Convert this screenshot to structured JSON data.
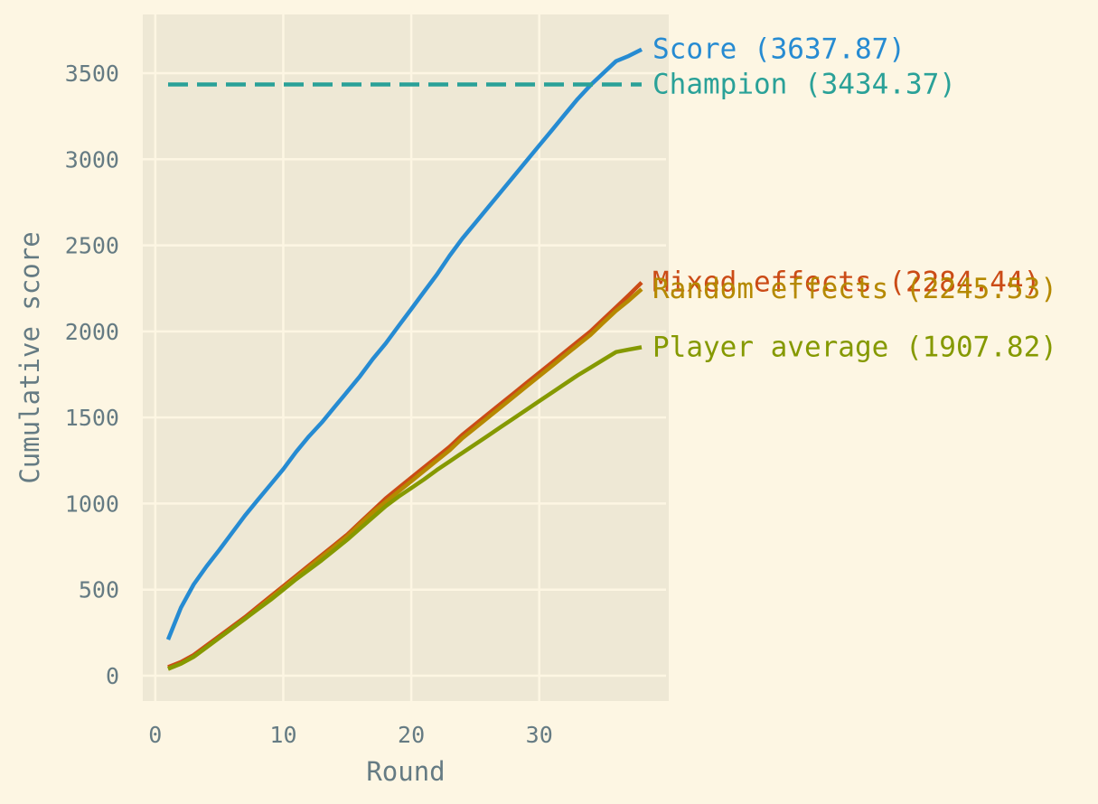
{
  "chart_data": {
    "type": "line",
    "title": "",
    "xlabel": "Round",
    "ylabel": "Cumulative score",
    "xlim": [
      0,
      40
    ],
    "ylim": [
      -150,
      3830
    ],
    "xticks": [
      0,
      10,
      20,
      30
    ],
    "yticks": [
      0,
      500,
      1000,
      1500,
      2000,
      2500,
      3000,
      3500
    ],
    "grid": true,
    "legend": "end-of-line labels",
    "colors": {
      "background": "#fdf6e3",
      "panel": "#eee8d5",
      "grid": "#fdf6e3",
      "text": "#657b83"
    },
    "series": [
      {
        "key": "score",
        "label": "Score (3637.87)",
        "color": "#268bd2",
        "dashed": false,
        "x": [
          1,
          2,
          3,
          4,
          5,
          6,
          7,
          8,
          9,
          10,
          11,
          12,
          13,
          14,
          15,
          16,
          17,
          18,
          19,
          20,
          21,
          22,
          23,
          24,
          25,
          26,
          27,
          28,
          29,
          30,
          31,
          32,
          33,
          34,
          35,
          36,
          37,
          38
        ],
        "y": [
          210,
          395,
          530,
          635,
          730,
          830,
          930,
          1020,
          1110,
          1200,
          1300,
          1390,
          1470,
          1560,
          1650,
          1740,
          1840,
          1930,
          2030,
          2130,
          2230,
          2330,
          2440,
          2540,
          2630,
          2720,
          2810,
          2900,
          2990,
          3080,
          3170,
          3260,
          3350,
          3430,
          3500,
          3570,
          3600,
          3637.87
        ]
      },
      {
        "key": "mixed",
        "label": "Mixed effects (2284.44)",
        "color": "#cb4b16",
        "dashed": false,
        "x": [
          1,
          2,
          3,
          4,
          5,
          6,
          7,
          8,
          9,
          10,
          11,
          12,
          13,
          14,
          15,
          16,
          17,
          18,
          19,
          20,
          21,
          22,
          23,
          24,
          25,
          26,
          27,
          28,
          29,
          30,
          31,
          32,
          33,
          34,
          35,
          36,
          37,
          38
        ],
        "y": [
          50,
          80,
          120,
          175,
          230,
          285,
          340,
          400,
          460,
          520,
          580,
          640,
          700,
          760,
          820,
          890,
          960,
          1030,
          1090,
          1150,
          1210,
          1270,
          1330,
          1400,
          1460,
          1520,
          1580,
          1640,
          1700,
          1760,
          1820,
          1880,
          1940,
          2000,
          2070,
          2140,
          2210,
          2284.44
        ]
      },
      {
        "key": "random",
        "label": "Random effects (2245.53)",
        "color": "#b58900",
        "dashed": false,
        "x": [
          1,
          2,
          3,
          4,
          5,
          6,
          7,
          8,
          9,
          10,
          11,
          12,
          13,
          14,
          15,
          16,
          17,
          18,
          19,
          20,
          21,
          22,
          23,
          24,
          25,
          26,
          27,
          28,
          29,
          30,
          31,
          32,
          33,
          34,
          35,
          36,
          37,
          38
        ],
        "y": [
          40,
          70,
          110,
          165,
          220,
          275,
          330,
          390,
          450,
          510,
          570,
          630,
          690,
          750,
          810,
          880,
          950,
          1010,
          1070,
          1130,
          1190,
          1250,
          1310,
          1380,
          1440,
          1500,
          1560,
          1620,
          1680,
          1740,
          1800,
          1860,
          1920,
          1980,
          2050,
          2120,
          2180,
          2245.53
        ]
      },
      {
        "key": "player",
        "label": "Player average (1907.82)",
        "color": "#859900",
        "dashed": false,
        "x": [
          1,
          2,
          3,
          4,
          5,
          6,
          7,
          8,
          9,
          10,
          11,
          12,
          13,
          14,
          15,
          16,
          17,
          18,
          19,
          20,
          21,
          22,
          23,
          24,
          25,
          26,
          27,
          28,
          29,
          30,
          31,
          32,
          33,
          34,
          35,
          36,
          37,
          38
        ],
        "y": [
          40,
          70,
          110,
          165,
          220,
          275,
          330,
          385,
          440,
          500,
          560,
          615,
          670,
          730,
          790,
          855,
          920,
          985,
          1040,
          1090,
          1140,
          1195,
          1245,
          1295,
          1345,
          1395,
          1445,
          1495,
          1545,
          1595,
          1645,
          1695,
          1745,
          1790,
          1835,
          1880,
          1895,
          1907.82
        ]
      },
      {
        "key": "champion",
        "label": "Champion (3434.37)",
        "color": "#2aa198",
        "dashed": true,
        "x": [
          1,
          38
        ],
        "y": [
          3434.37,
          3434.37
        ]
      }
    ]
  }
}
